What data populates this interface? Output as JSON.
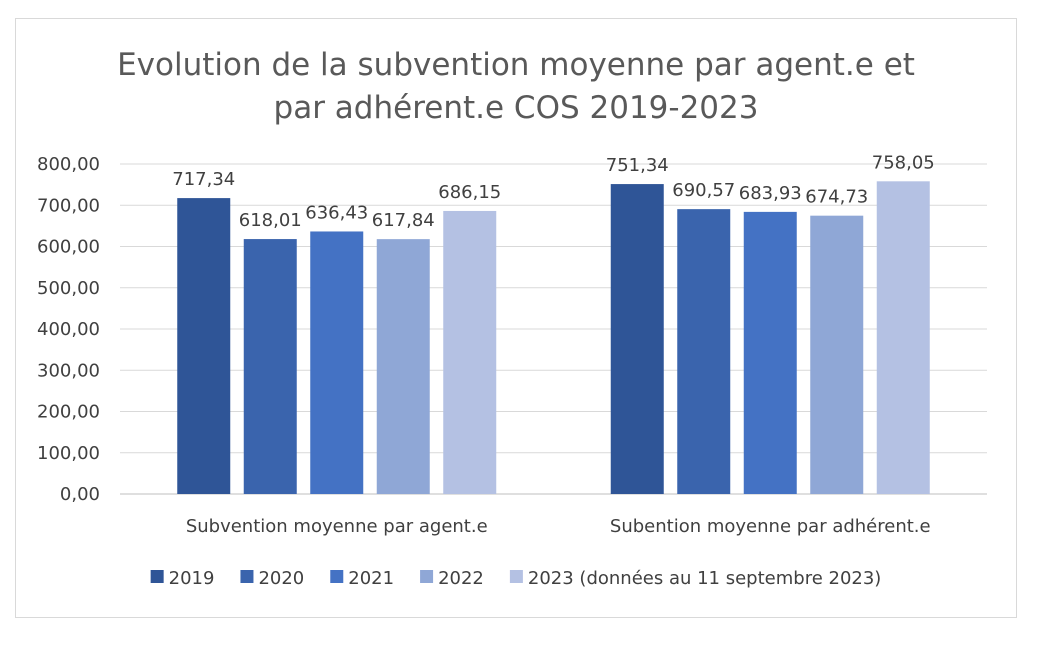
{
  "chart_data": {
    "type": "bar",
    "title_lines": [
      "Evolution de la subvention moyenne par agent.e et",
      "par adhérent.e COS 2019-2023"
    ],
    "categories": [
      "Subvention moyenne par agent.e",
      "Subention moyenne par adhérent.e"
    ],
    "series": [
      {
        "name": "2019",
        "color": "#2f5597",
        "values": [
          717.34,
          751.34
        ],
        "labels": [
          "717,34",
          "751,34"
        ]
      },
      {
        "name": "2020",
        "color": "#3a64ad",
        "values": [
          618.01,
          690.57
        ],
        "labels": [
          "618,01",
          "690,57"
        ]
      },
      {
        "name": "2021",
        "color": "#4472c4",
        "values": [
          636.43,
          683.93
        ],
        "labels": [
          "636,43",
          "683,93"
        ]
      },
      {
        "name": "2022",
        "color": "#8fa7d6",
        "values": [
          617.84,
          674.73
        ],
        "labels": [
          "617,84",
          "674,73"
        ]
      },
      {
        "name": "2023 (données au 11 septembre 2023)",
        "color": "#b4c1e3",
        "values": [
          686.15,
          758.05
        ],
        "labels": [
          "686,15",
          "758,05"
        ]
      }
    ],
    "yticks": [
      "0,00",
      "100,00",
      "200,00",
      "300,00",
      "400,00",
      "500,00",
      "600,00",
      "700,00",
      "800,00"
    ],
    "ylim": [
      0,
      800
    ],
    "grid": true,
    "legend_position": "bottom"
  }
}
